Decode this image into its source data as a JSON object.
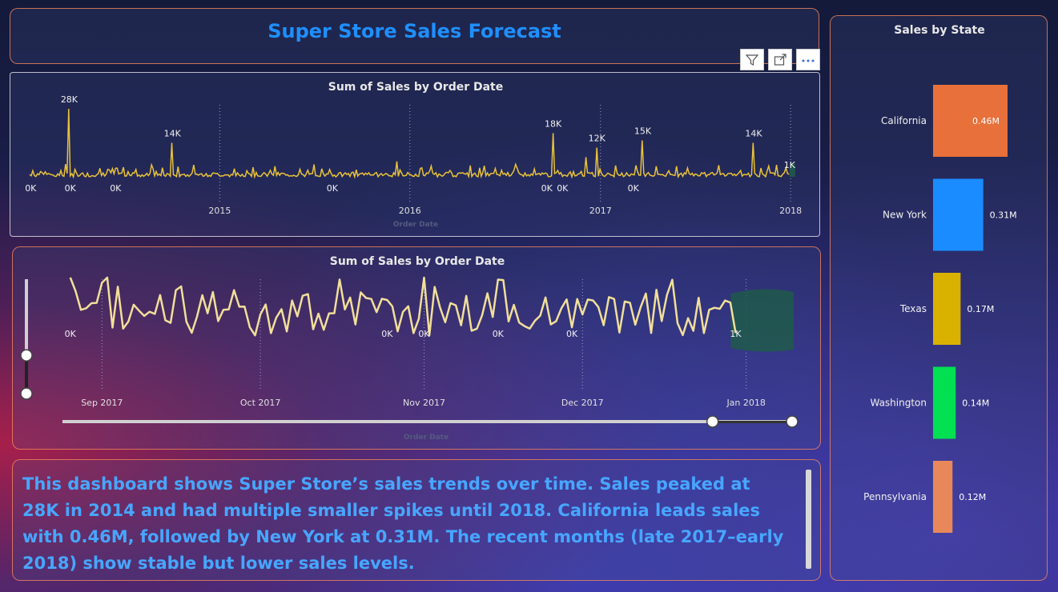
{
  "dashboard": {
    "title": "Super Store Sales Forecast",
    "summary": "This dashboard shows Super Store’s sales trends over time. Sales peaked at 28K in 2014 and had multiple smaller spikes until 2018. California leads sales with 0.46M, followed by New York at 0.31M. The recent months (late 2017–early 2018) show stable but lower sales levels."
  },
  "toolbar": {
    "filter_icon": "filter-icon",
    "focus_icon": "focus-mode-icon",
    "more_icon": "more-options-icon"
  },
  "colors": {
    "title": "#1f8fff",
    "summary_text": "#47a6ff",
    "line_main": "#e8c23a",
    "line_zoom": "#f2df9a",
    "forecast": "#1e5a4a",
    "panel_border": "#ff8c5a"
  },
  "chart_data": [
    {
      "type": "line",
      "title": "Sum of Sales by Order Date",
      "xlabel": "Order Date",
      "ylabel": "",
      "x_ticks": [
        "2015",
        "2016",
        "2017",
        "2018"
      ],
      "x_range": [
        "2014-01-01",
        "2018-01-10"
      ],
      "ylim": [
        0,
        30000
      ],
      "series": [
        {
          "values_note_free": true,
          "daily_sales_annotated": [
            {
              "date": "2014-01-03",
              "value": 0,
              "label": "0K"
            },
            {
              "date": "2014-03-20",
              "value": 0,
              "label": "0K"
            },
            {
              "date": "2014-03-18",
              "value": 28000,
              "label": "28K"
            },
            {
              "date": "2014-06-15",
              "value": 0,
              "label": "0K"
            },
            {
              "date": "2014-10-02",
              "value": 14000,
              "label": "14K"
            },
            {
              "date": "2015-08-05",
              "value": 0,
              "label": "0K"
            },
            {
              "date": "2016-10-02",
              "value": 18000,
              "label": "18K"
            },
            {
              "date": "2016-09-20",
              "value": 0,
              "label": "0K"
            },
            {
              "date": "2016-10-20",
              "value": 0,
              "label": "0K"
            },
            {
              "date": "2016-12-25",
              "value": 12000,
              "label": "12K"
            },
            {
              "date": "2017-03-23",
              "value": 15000,
              "label": "15K"
            },
            {
              "date": "2017-03-05",
              "value": 0,
              "label": "0K"
            },
            {
              "date": "2017-10-22",
              "value": 14000,
              "label": "14K"
            },
            {
              "date": "2017-12-30",
              "value": 1000,
              "label": "1K"
            }
          ]
        }
      ],
      "forecast_shown": true
    },
    {
      "type": "line",
      "title": "Sum of Sales by Order Date",
      "xlabel": "Order Date",
      "ylabel": "",
      "x_ticks": [
        "Sep 2017",
        "Oct 2017",
        "Nov 2017",
        "Dec 2017",
        "Jan 2018"
      ],
      "x_range": [
        "2017-08-23",
        "2018-01-10"
      ],
      "ylim": [
        0,
        2800
      ],
      "point_labels": [
        {
          "date": "2017-08-26",
          "label": "0K"
        },
        {
          "date": "2017-10-25",
          "label": "0K"
        },
        {
          "date": "2017-11-01",
          "label": "0K"
        },
        {
          "date": "2017-11-15",
          "label": "0K"
        },
        {
          "date": "2017-11-29",
          "label": "0K"
        },
        {
          "date": "2017-12-30",
          "label": "1K"
        }
      ],
      "forecast_shown": true,
      "range_slider": {
        "start": 0.89,
        "end": 1.0
      },
      "vertical_slider": {
        "start": 0.0,
        "end": 0.45
      }
    },
    {
      "type": "bar",
      "title": "Sales by State",
      "categories": [
        "California",
        "New York",
        "Texas",
        "Washington",
        "Pennsylvania"
      ],
      "values": [
        0.46,
        0.31,
        0.17,
        0.14,
        0.12
      ],
      "labels": [
        "0.46M",
        "0.31M",
        "0.17M",
        "0.14M",
        "0.12M"
      ],
      "colors": [
        "#e8703a",
        "#1a8cff",
        "#d9b200",
        "#00e050",
        "#e8885a"
      ],
      "unit": "M"
    }
  ]
}
